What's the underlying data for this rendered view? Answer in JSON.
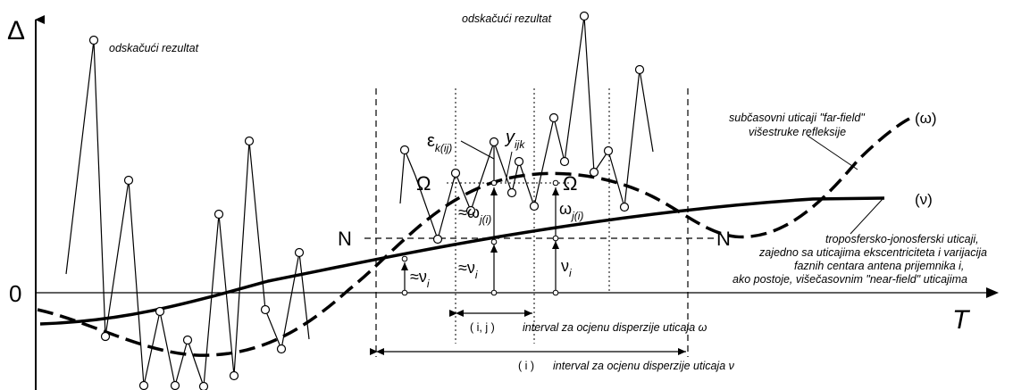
{
  "axes": {
    "y_label": "Δ",
    "x_label": "T",
    "zero_label": "0"
  },
  "labels": {
    "outlier_left": "odskačući rezultat",
    "outlier_top": "odskačući rezultat",
    "subdaily_line1": "subčasovni uticaji \"far-field\"",
    "subdaily_line2": "višestruke refleksije",
    "omega_curve": "(ω)",
    "nu_curve": "(ν)",
    "tropo_line1": "troposfersko-jonosferski uticaji,",
    "tropo_line2": "zajedno sa uticajima ekscentriciteta i varijacija",
    "tropo_line3": "faznih centara antena prijemnika i,",
    "tropo_line4": "ako postoje, višečasovnim \"near-field\" uticajima",
    "N_left": "N",
    "N_right": "N",
    "Omega_left": "Ω",
    "Omega_right": "Ω",
    "y_ijk": "y",
    "y_ijk_sub": "ijk",
    "eps": "ε",
    "eps_sub": "k(ij)",
    "approx_omega": "≈ω",
    "approx_omega_sub": "j(i)",
    "omega_j": "ω",
    "omega_j_sub": "j(i)",
    "approx_nu_a": "≈ν",
    "approx_nu_a_sub": "i",
    "approx_nu_b": "≈ν",
    "approx_nu_b_sub": "i",
    "nu_i": "ν",
    "nu_i_sub": "i",
    "interval_ij_tag": "( i, j )",
    "interval_ij_text": "interval za ocjenu disperzije uticaja ω",
    "interval_i_tag": "( i )",
    "interval_i_text": "interval za ocjenu disperzije uticaja ν"
  }
}
